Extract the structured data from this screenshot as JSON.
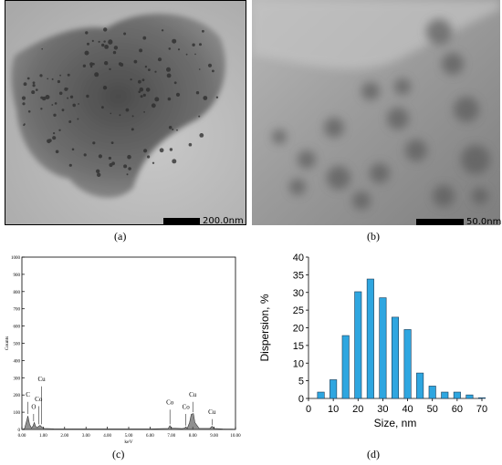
{
  "panels": {
    "a": {
      "label": "(a)",
      "scale_text": "200.0nm"
    },
    "b": {
      "label": "(b)",
      "scale_text": "50.0nm"
    },
    "c": {
      "label": "(c)"
    },
    "d": {
      "label": "(d)"
    }
  },
  "chart_data": [
    {
      "type": "line",
      "panel": "c",
      "title": "",
      "xlabel": "keV",
      "ylabel": "Counts",
      "xlim": [
        0,
        10
      ],
      "ylim": [
        0,
        1000
      ],
      "x_ticks": [
        "0.00",
        "1.00",
        "2.00",
        "3.00",
        "4.00",
        "5.00",
        "6.00",
        "7.00",
        "8.00",
        "9.00",
        "10.00"
      ],
      "y_ticks": [
        "0",
        "100",
        "200",
        "300",
        "400",
        "500",
        "600",
        "700",
        "800",
        "900",
        "1000"
      ],
      "grid": false,
      "spectrum": [
        [
          0.0,
          0
        ],
        [
          0.12,
          5
        ],
        [
          0.2,
          40
        ],
        [
          0.28,
          78
        ],
        [
          0.36,
          30
        ],
        [
          0.45,
          8
        ],
        [
          0.52,
          20
        ],
        [
          0.58,
          40
        ],
        [
          0.64,
          18
        ],
        [
          0.72,
          10
        ],
        [
          0.78,
          18
        ],
        [
          0.85,
          24
        ],
        [
          0.93,
          14
        ],
        [
          1.05,
          6
        ],
        [
          1.5,
          4
        ],
        [
          2.5,
          3
        ],
        [
          4.0,
          3
        ],
        [
          6.0,
          3
        ],
        [
          6.85,
          6
        ],
        [
          6.93,
          22
        ],
        [
          7.0,
          8
        ],
        [
          7.5,
          5
        ],
        [
          7.62,
          8
        ],
        [
          7.68,
          15
        ],
        [
          7.74,
          6
        ],
        [
          7.85,
          40
        ],
        [
          7.93,
          88
        ],
        [
          8.03,
          92
        ],
        [
          8.1,
          40
        ],
        [
          8.3,
          6
        ],
        [
          8.8,
          6
        ],
        [
          8.9,
          18
        ],
        [
          9.0,
          6
        ],
        [
          9.4,
          3
        ],
        [
          10.0,
          2
        ]
      ],
      "annotations": [
        {
          "text": "C",
          "x": 0.28,
          "y": 190,
          "tick_y": 90
        },
        {
          "text": "O",
          "x": 0.55,
          "y": 120,
          "tick_y": 48
        },
        {
          "text": "Co",
          "x": 0.78,
          "y": 165,
          "tick_y": 30
        },
        {
          "text": "Cu",
          "x": 0.92,
          "y": 280,
          "tick_y": 30
        },
        {
          "text": "Co",
          "x": 6.93,
          "y": 145,
          "tick_y": 30
        },
        {
          "text": "Co",
          "x": 7.68,
          "y": 120,
          "tick_y": 22
        },
        {
          "text": "Cu",
          "x": 8.0,
          "y": 190,
          "tick_y": 100
        },
        {
          "text": "Cu",
          "x": 8.9,
          "y": 90,
          "tick_y": 25
        }
      ]
    },
    {
      "type": "bar",
      "panel": "d",
      "title": "",
      "xlabel": "Size, nm",
      "ylabel": "Dispersion, %",
      "xlim": [
        0,
        70
      ],
      "ylim": [
        0,
        40
      ],
      "x_ticks": [
        0,
        10,
        20,
        30,
        40,
        50,
        60,
        70
      ],
      "y_ticks": [
        0,
        5,
        10,
        15,
        20,
        25,
        30,
        35,
        40
      ],
      "grid": false,
      "color": "#2ea6e0",
      "categories": [
        5,
        10,
        15,
        20,
        25,
        30,
        35,
        40,
        45,
        50,
        55,
        60,
        65,
        70
      ],
      "values": [
        1.8,
        5.3,
        17.8,
        30.2,
        33.8,
        28.5,
        23.0,
        19.5,
        7.2,
        3.5,
        1.8,
        1.8,
        1.0,
        0.2
      ]
    }
  ]
}
